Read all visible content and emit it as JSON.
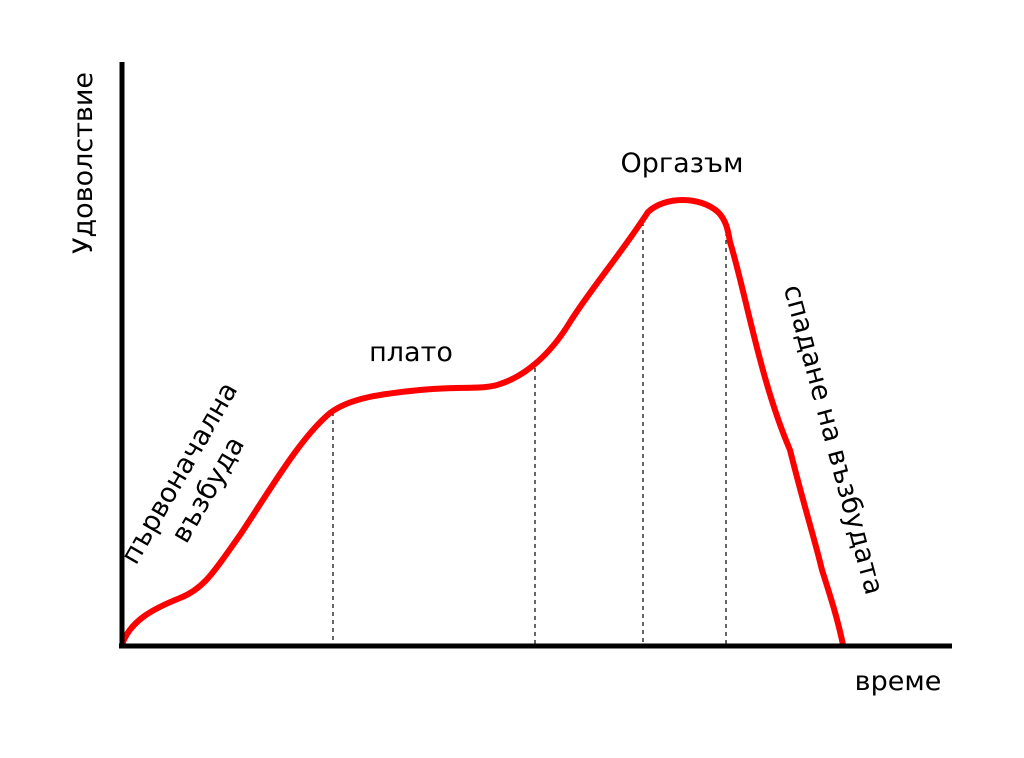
{
  "diagram": {
    "y_axis_label": "Удоволствие",
    "x_axis_label": "време",
    "phases": {
      "initial_arousal_line1": "първоначална",
      "initial_arousal_line2": "възбуда",
      "plateau": "плато",
      "orgasm": "Оргазъм",
      "resolution": "спадане на възбудата"
    },
    "colors": {
      "curve": "#ff0000",
      "axes": "#000000",
      "dividers": "#000000",
      "background": "#ffffff"
    }
  }
}
